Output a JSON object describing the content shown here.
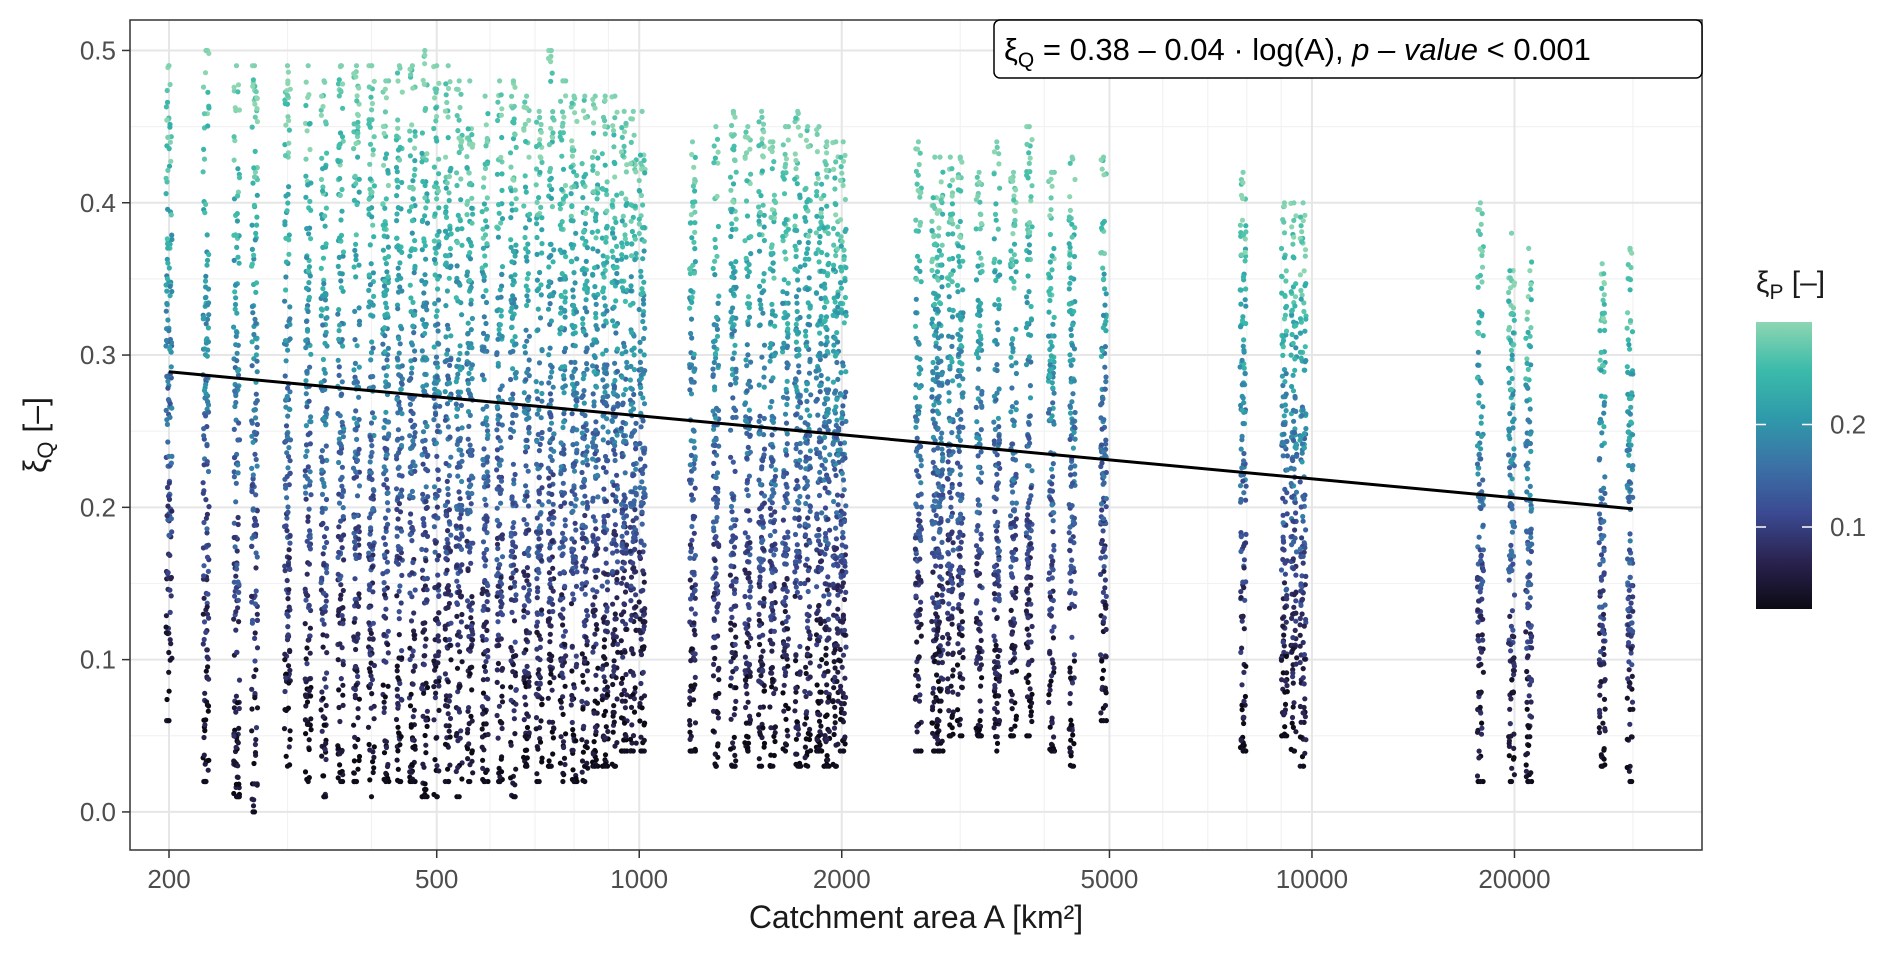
{
  "chart_data": {
    "type": "scatter",
    "title": "",
    "xlabel": "Catchment area A [km²]",
    "ylabel": "ξQ [–]",
    "ylabel_main": "ξ",
    "ylabel_sub": "Q",
    "ylabel_rest": " [–]",
    "x_scale": "log",
    "xlim": [
      175,
      38000
    ],
    "ylim": [
      -0.025,
      0.52
    ],
    "x_ticks": [
      200,
      500,
      1000,
      2000,
      5000,
      10000,
      20000
    ],
    "x_tick_labels": [
      "200",
      "500",
      "1000",
      "2000",
      "5000",
      "10000",
      "20000"
    ],
    "y_ticks": [
      0.0,
      0.1,
      0.2,
      0.3,
      0.4,
      0.5
    ],
    "y_tick_labels": [
      "0.0",
      "0.1",
      "0.2",
      "0.3",
      "0.4",
      "0.5"
    ],
    "grid": true,
    "annotation": {
      "text": "ξQ = 0.38 – 0.04 · log(A), p – value < 0.001",
      "xi": "ξ",
      "sub": "Q",
      "equation": " = 0.38 – 0.04 · log(A), ",
      "italic": "p – value",
      "tail": " < 0.001"
    },
    "trend_line": {
      "x": [
        200,
        30000
      ],
      "y": [
        0.289,
        0.199
      ]
    },
    "legend": {
      "title": "ξP [–]",
      "title_main": "ξ",
      "title_sub": "P",
      "title_rest": " [–]",
      "placement": "right",
      "range": [
        0.02,
        0.3
      ],
      "ticks": [
        0.1,
        0.2
      ],
      "tick_labels": [
        "0.1",
        "0.2"
      ],
      "colors": [
        "#0c0a14",
        "#2a2350",
        "#3b4a92",
        "#3b72a6",
        "#2f9aaa",
        "#3bbbaa",
        "#8dd6b2"
      ]
    },
    "series": [
      {
        "x": [
          200,
          227,
          252,
          268,
          300,
          322,
          340,
          360,
          380,
          400,
          420,
          440,
          460,
          480,
          500,
          520,
          540,
          560,
          590,
          620,
          650,
          680,
          710,
          740,
          770,
          800,
          830,
          860,
          890,
          920,
          950,
          980,
          1010,
          1200,
          1300,
          1380,
          1450,
          1520,
          1580,
          1650,
          1720,
          1780,
          1850,
          1900,
          1960,
          2010,
          2600,
          2750,
          2800,
          2900,
          3000,
          3200,
          3400,
          3600,
          3800,
          4100,
          4400,
          4900,
          7900,
          9100,
          9400,
          9700,
          17800,
          19800,
          21000,
          27000,
          29700
        ],
        "y_min": [
          0.06,
          0.02,
          0.01,
          0.0,
          0.03,
          0.02,
          0.01,
          0.02,
          0.02,
          0.01,
          0.02,
          0.02,
          0.02,
          0.01,
          0.01,
          0.02,
          0.01,
          0.02,
          0.02,
          0.02,
          0.01,
          0.03,
          0.02,
          0.03,
          0.02,
          0.02,
          0.02,
          0.03,
          0.03,
          0.03,
          0.04,
          0.04,
          0.04,
          0.04,
          0.03,
          0.03,
          0.04,
          0.03,
          0.03,
          0.04,
          0.03,
          0.03,
          0.04,
          0.03,
          0.03,
          0.04,
          0.04,
          0.04,
          0.04,
          0.05,
          0.05,
          0.05,
          0.04,
          0.05,
          0.05,
          0.04,
          0.03,
          0.06,
          0.04,
          0.05,
          0.04,
          0.03,
          0.02,
          0.02,
          0.02,
          0.03,
          0.02
        ],
        "y_max": [
          0.49,
          0.5,
          0.49,
          0.49,
          0.49,
          0.49,
          0.48,
          0.49,
          0.49,
          0.49,
          0.48,
          0.49,
          0.49,
          0.5,
          0.49,
          0.49,
          0.48,
          0.48,
          0.47,
          0.48,
          0.48,
          0.47,
          0.46,
          0.5,
          0.48,
          0.47,
          0.47,
          0.47,
          0.47,
          0.47,
          0.46,
          0.46,
          0.46,
          0.44,
          0.45,
          0.46,
          0.45,
          0.46,
          0.44,
          0.45,
          0.46,
          0.45,
          0.45,
          0.44,
          0.44,
          0.44,
          0.44,
          0.43,
          0.43,
          0.43,
          0.43,
          0.42,
          0.44,
          0.42,
          0.45,
          0.42,
          0.43,
          0.43,
          0.42,
          0.4,
          0.4,
          0.4,
          0.4,
          0.38,
          0.37,
          0.36,
          0.37
        ],
        "y_center": [
          0.24,
          0.22,
          0.22,
          0.22,
          0.23,
          0.22,
          0.21,
          0.22,
          0.22,
          0.23,
          0.22,
          0.22,
          0.22,
          0.23,
          0.22,
          0.22,
          0.22,
          0.21,
          0.21,
          0.21,
          0.21,
          0.21,
          0.21,
          0.22,
          0.21,
          0.21,
          0.2,
          0.2,
          0.2,
          0.2,
          0.2,
          0.2,
          0.2,
          0.2,
          0.2,
          0.2,
          0.2,
          0.2,
          0.2,
          0.2,
          0.2,
          0.2,
          0.19,
          0.19,
          0.19,
          0.19,
          0.2,
          0.2,
          0.2,
          0.2,
          0.2,
          0.19,
          0.19,
          0.19,
          0.2,
          0.19,
          0.19,
          0.2,
          0.2,
          0.2,
          0.2,
          0.2,
          0.18,
          0.18,
          0.17,
          0.17,
          0.17
        ]
      }
    ]
  }
}
